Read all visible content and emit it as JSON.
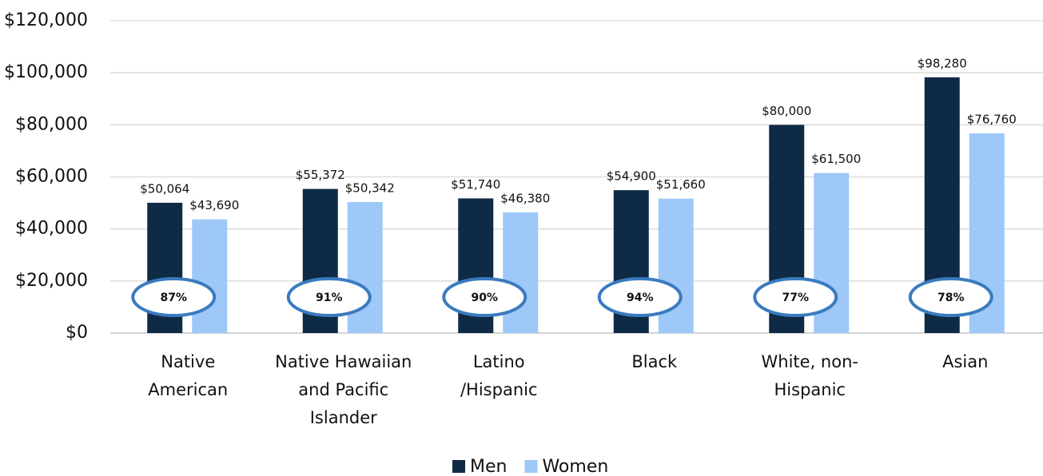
{
  "chart_data": {
    "type": "bar",
    "categories": [
      "Native\nAmerican",
      "Native Hawaiian\nand Pacific\nIslander",
      "Latino\n/Hispanic",
      "Black",
      "White, non-\nHispanic",
      "Asian"
    ],
    "series": [
      {
        "name": "Men",
        "color": "#0f2a45",
        "values": [
          50064,
          55372,
          51740,
          54900,
          80000,
          98280
        ],
        "value_labels": [
          "$50,064",
          "$55,372",
          "$51,740",
          "$54,900",
          "$80,000",
          "$98,280"
        ]
      },
      {
        "name": "Women",
        "color": "#9dc8f7",
        "values": [
          43690,
          50342,
          46380,
          51660,
          61500,
          76760
        ],
        "value_labels": [
          "$43,690",
          "$50,342",
          "$46,380",
          "$51,660",
          "$61,500",
          "$76,760"
        ]
      }
    ],
    "ratio": {
      "color": "#3a7bbf",
      "values": [
        87,
        91,
        90,
        94,
        77,
        78
      ],
      "value_labels": [
        "87%",
        "91%",
        "90%",
        "94%",
        "77%",
        "78%"
      ]
    },
    "ylim": [
      0,
      120000
    ],
    "yticks": [
      {
        "value": 0,
        "label": "$0"
      },
      {
        "value": 20000,
        "label": "$20,000"
      },
      {
        "value": 40000,
        "label": "$40,000"
      },
      {
        "value": 60000,
        "label": "$60,000"
      },
      {
        "value": 80000,
        "label": "$80,000"
      },
      {
        "value": 100000,
        "label": "$100,000"
      },
      {
        "value": 120000,
        "label": "$120,000"
      }
    ],
    "grid": true,
    "legend": "bottom"
  }
}
